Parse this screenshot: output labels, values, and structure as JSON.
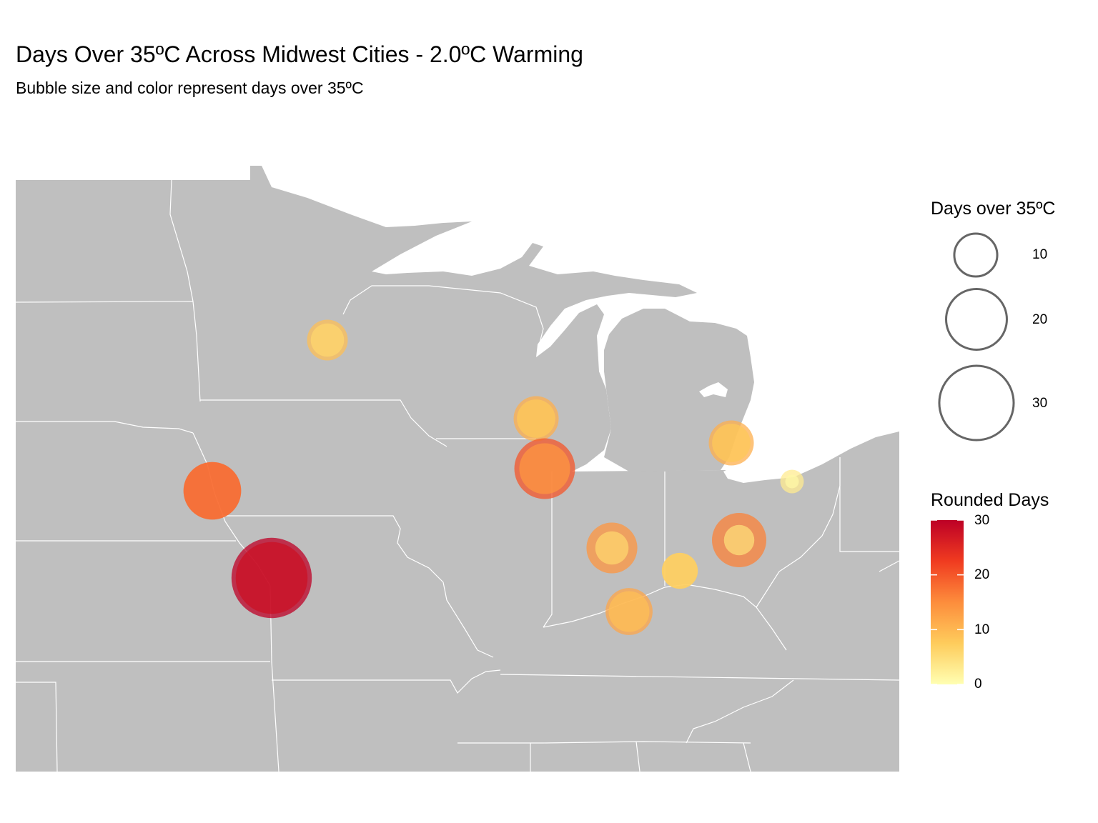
{
  "title": "Days Over 35ºC Across Midwest Cities - 2.0ºC Warming",
  "subtitle": "Bubble size and color represent days over 35ºC",
  "chart_data": {
    "type": "scatter",
    "map_region": "US Midwest (state boundaries)",
    "size_variable": "Days over 35ºC",
    "color_variable": "Rounded Days",
    "colors": {
      "land": "#bfbfbf",
      "state_border": "#ffffff",
      "water": "#ffffff",
      "scale": [
        "#ffffb2",
        "#fecc5c",
        "#fd8d3c",
        "#f03b20",
        "#bd0026"
      ]
    },
    "points": [
      {
        "days": 9,
        "alt_days": 6
      },
      {
        "days": 11,
        "alt_days": 8
      },
      {
        "days": 20,
        "alt_days": 14
      },
      {
        "days": 18,
        "alt_days": 18
      },
      {
        "days": 35,
        "alt_days": 28
      },
      {
        "days": 14,
        "alt_days": 6
      },
      {
        "days": 11,
        "alt_days": 8
      },
      {
        "days": 16,
        "alt_days": 5
      },
      {
        "days": 7,
        "alt_days": 7
      },
      {
        "days": 12,
        "alt_days": 9
      },
      {
        "days": 3,
        "alt_days": 1
      }
    ],
    "size_legend": {
      "title": "Days over 35ºC",
      "breaks": [
        10,
        20,
        30
      ],
      "labels": [
        "10",
        "20",
        "30"
      ]
    },
    "color_legend": {
      "title": "Rounded Days",
      "range": [
        0,
        30
      ],
      "breaks": [
        0,
        10,
        20,
        30
      ],
      "labels": [
        "0",
        "10",
        "20",
        "30"
      ]
    }
  }
}
